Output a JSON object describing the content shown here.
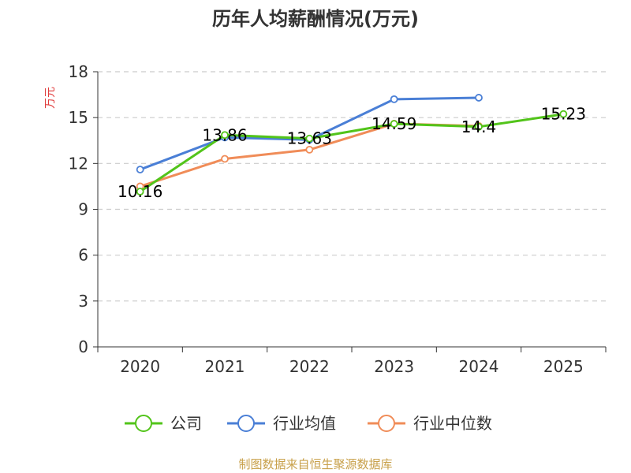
{
  "chart_data": {
    "type": "line",
    "title": "历年人均薪酬情况(万元)",
    "ylabel": "万元",
    "xlabel": "",
    "categories": [
      "2020",
      "2021",
      "2022",
      "2023",
      "2024",
      "2025"
    ],
    "ylim": [
      0,
      18
    ],
    "yticks": [
      0,
      3,
      6,
      9,
      12,
      15,
      18
    ],
    "grid": true,
    "legend_position": "bottom",
    "series": [
      {
        "name": "公司",
        "color": "#52c41a",
        "values": [
          10.16,
          13.86,
          13.63,
          14.59,
          14.4,
          15.23
        ],
        "labels": [
          "10.16",
          "13.86",
          "13.63",
          "14.59",
          "14.4",
          "15.23"
        ]
      },
      {
        "name": "行业均值",
        "color": "#4a7fd6",
        "values": [
          11.6,
          13.7,
          13.55,
          16.2,
          16.3,
          null
        ]
      },
      {
        "name": "行业中位数",
        "color": "#f08c58",
        "values": [
          10.5,
          12.3,
          12.9,
          14.6,
          14.45,
          null
        ]
      }
    ],
    "source": "制图数据来自恒生聚源数据库"
  },
  "colors": {
    "title": "#333333",
    "ylabel": "#e03c3c",
    "source": "#c8a04a",
    "grid": "#cccccc",
    "axis": "#333333"
  }
}
